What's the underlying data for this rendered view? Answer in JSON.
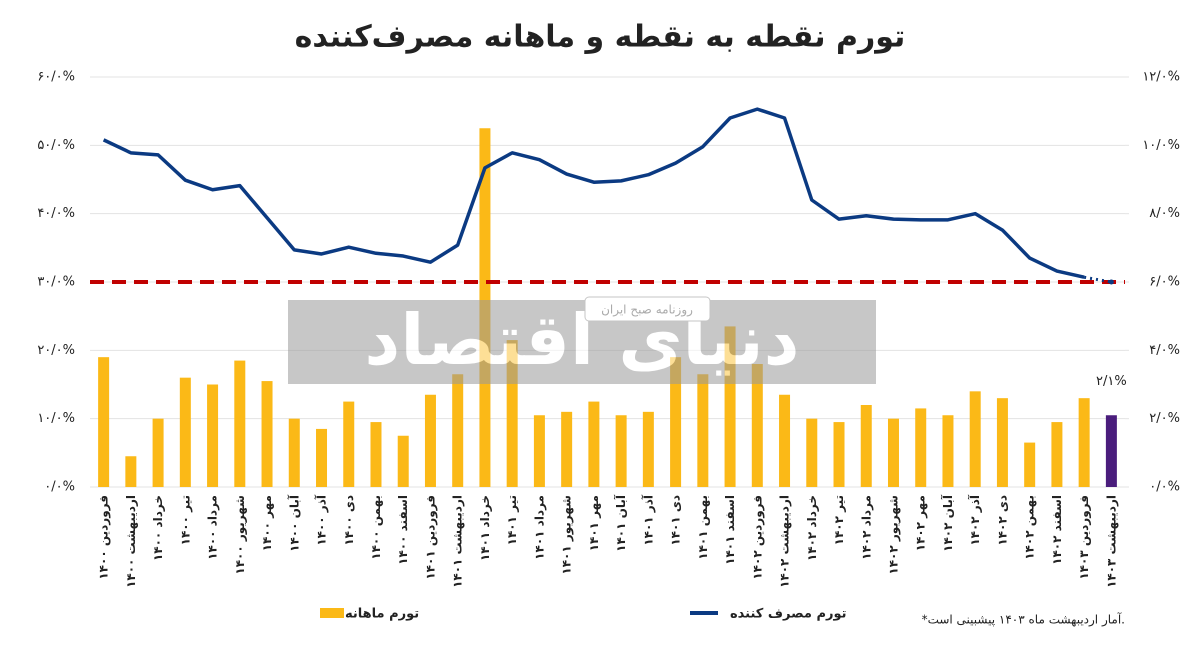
{
  "chart_data": {
    "type": "bar-line",
    "title": "تورم نقطه به نقطه و ماهانه مصرف‌کننده",
    "categories": [
      "فروردین ۱۴۰۰",
      "اردیبهشت ۱۴۰۰",
      "خرداد ۱۴۰۰",
      "تیر ۱۴۰۰",
      "مرداد ۱۴۰۰",
      "شهریور ۱۴۰۰",
      "مهر ۱۴۰۰",
      "آبان ۱۴۰۰",
      "آذر ۱۴۰۰",
      "دی ۱۴۰۰",
      "بهمن ۱۴۰۰",
      "اسفند ۱۴۰۰",
      "فروردین ۱۴۰۱",
      "اردیبهشت ۱۴۰۱",
      "خرداد ۱۴۰۱",
      "تیر ۱۴۰۱",
      "مرداد ۱۴۰۱",
      "شهریور ۱۴۰۱",
      "مهر ۱۴۰۱",
      "آبان ۱۴۰۱",
      "آذر ۱۴۰۱",
      "دی ۱۴۰۱",
      "بهمن ۱۴۰۱",
      "اسفند ۱۴۰۱",
      "فروردین ۱۴۰۲",
      "اردیبهشت ۱۴۰۲",
      "خرداد ۱۴۰۲",
      "تیر ۱۴۰۲",
      "مرداد ۱۴۰۲",
      "شهریور ۱۴۰۲",
      "مهر ۱۴۰۲",
      "آبان ۱۴۰۲",
      "آذر ۱۴۰۲",
      "دی ۱۴۰۲",
      "بهمن ۱۴۰۲",
      "اسفند ۱۴۰۲",
      "فروردین ۱۴۰۳",
      "اردیبهشت ۱۴۰۳"
    ],
    "series": [
      {
        "name": "تورم ماهانه",
        "kind": "bar",
        "axis": "y2",
        "color": "#fbb917",
        "last_color": "#4a1d7c",
        "values": [
          3.8,
          0.9,
          2.0,
          3.2,
          3.0,
          3.7,
          3.1,
          2.0,
          1.7,
          2.5,
          1.9,
          1.5,
          2.7,
          3.3,
          10.5,
          4.3,
          2.1,
          2.2,
          2.5,
          2.1,
          2.2,
          3.8,
          3.3,
          4.7,
          3.6,
          2.7,
          2.0,
          1.9,
          2.4,
          2.0,
          2.3,
          2.1,
          2.8,
          2.6,
          1.3,
          1.9,
          2.6,
          2.1
        ],
        "value_labels": [
          null,
          null,
          null,
          null,
          null,
          null,
          null,
          null,
          null,
          null,
          null,
          null,
          null,
          null,
          null,
          null,
          null,
          null,
          null,
          null,
          null,
          null,
          null,
          null,
          null,
          null,
          null,
          null,
          null,
          null,
          null,
          null,
          null,
          null,
          null,
          null,
          null,
          "۲/۱%"
        ]
      },
      {
        "name": "تورم مصرف کننده",
        "kind": "line",
        "axis": "y",
        "color": "#0b3a82",
        "values": [
          50.8,
          48.9,
          48.6,
          44.9,
          43.5,
          44.1,
          39.4,
          34.7,
          34.1,
          35.1,
          34.2,
          33.8,
          32.9,
          35.4,
          46.7,
          48.9,
          47.9,
          45.8,
          44.6,
          44.8,
          45.7,
          47.4,
          49.8,
          54.0,
          55.3,
          54.0,
          42.0,
          39.2,
          39.7,
          39.2,
          39.1,
          39.1,
          40.0,
          37.6,
          33.5,
          31.6,
          30.7,
          30.0
        ]
      }
    ],
    "ylim": [
      0,
      60
    ],
    "yticks": [
      {
        "value": 0,
        "label": "۰/۰%"
      },
      {
        "value": 10,
        "label": "۱۰/۰%"
      },
      {
        "value": 20,
        "label": "۲۰/۰%"
      },
      {
        "value": 30,
        "label": "۳۰/۰%"
      },
      {
        "value": 40,
        "label": "۴۰/۰%"
      },
      {
        "value": 50,
        "label": "۵۰/۰%"
      },
      {
        "value": 60,
        "label": "۶۰/۰%"
      }
    ],
    "y2lim": [
      0,
      12
    ],
    "y2ticks": [
      {
        "value": 0,
        "label": "۰/۰%"
      },
      {
        "value": 2,
        "label": "۲/۰%"
      },
      {
        "value": 4,
        "label": "۴/۰%"
      },
      {
        "value": 6,
        "label": "۶/۰%"
      },
      {
        "value": 8,
        "label": "۸/۰%"
      },
      {
        "value": 10,
        "label": "۱۰/۰%"
      },
      {
        "value": 12,
        "label": "۱۲/۰%"
      }
    ],
    "grid": true,
    "reference_line": {
      "value": 30,
      "color": "#c00000"
    },
    "legend": "bottom",
    "footnote": "*آمار اردیبهشت ماه ۱۴۰۳ پیشبینی است.",
    "watermark": {
      "text": "دنیای اقتصاد",
      "subtext": "روزنامه صبح ایران"
    }
  }
}
